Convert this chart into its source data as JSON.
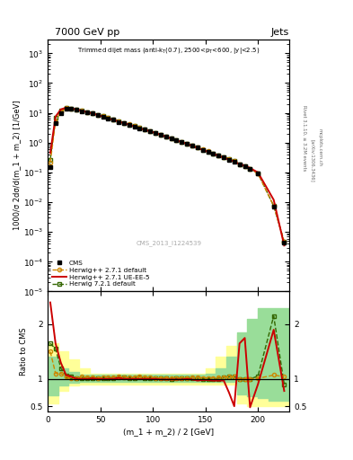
{
  "title_top": "7000 GeV pp",
  "title_right": "Jets",
  "plot_title": "Trimmed dijet mass (anti-k_{T}(0.7), 2500<p_{T}<600, |y|<2.5)",
  "watermark": "CMS_2013_I1224539",
  "xlabel": "(m_1 + m_2) / 2 [GeV]",
  "ylabel_main": "1000/σ 2dσ/d(m_1 + m_2) [1/GeV]",
  "ylabel_ratio": "Ratio to CMS",
  "xlim": [
    0,
    230
  ],
  "ylim_main": [
    1e-05,
    3000.0
  ],
  "ylim_ratio": [
    0.4,
    2.6
  ],
  "cms_x": [
    2.5,
    7.5,
    12.5,
    17.5,
    22.5,
    27.5,
    32.5,
    37.5,
    42.5,
    47.5,
    52.5,
    57.5,
    62.5,
    67.5,
    72.5,
    77.5,
    82.5,
    87.5,
    92.5,
    97.5,
    102.5,
    107.5,
    112.5,
    117.5,
    122.5,
    127.5,
    132.5,
    137.5,
    142.5,
    147.5,
    152.5,
    157.5,
    162.5,
    167.5,
    172.5,
    177.5,
    182.5,
    187.5,
    192.5,
    200,
    215,
    225
  ],
  "cms_y": [
    0.15,
    4.5,
    10.0,
    14.0,
    13.5,
    13.0,
    11.5,
    10.5,
    9.5,
    8.5,
    7.5,
    6.5,
    5.8,
    5.0,
    4.5,
    4.0,
    3.5,
    3.0,
    2.7,
    2.4,
    2.1,
    1.85,
    1.6,
    1.4,
    1.2,
    1.05,
    0.9,
    0.78,
    0.68,
    0.58,
    0.5,
    0.43,
    0.37,
    0.32,
    0.27,
    0.23,
    0.19,
    0.16,
    0.13,
    0.09,
    0.007,
    0.00045
  ],
  "hw271_x": [
    2.5,
    7.5,
    12.5,
    17.5,
    22.5,
    27.5,
    32.5,
    37.5,
    42.5,
    47.5,
    52.5,
    57.5,
    62.5,
    67.5,
    72.5,
    77.5,
    82.5,
    87.5,
    92.5,
    97.5,
    102.5,
    107.5,
    112.5,
    117.5,
    122.5,
    127.5,
    132.5,
    137.5,
    142.5,
    147.5,
    152.5,
    157.5,
    162.5,
    167.5,
    172.5,
    177.5,
    182.5,
    187.5,
    192.5,
    200,
    215,
    225
  ],
  "hw271_y": [
    0.22,
    5.0,
    11.0,
    14.5,
    13.8,
    13.2,
    11.8,
    10.8,
    9.8,
    8.7,
    7.7,
    6.7,
    6.0,
    5.2,
    4.65,
    4.1,
    3.6,
    3.12,
    2.78,
    2.48,
    2.15,
    1.88,
    1.63,
    1.42,
    1.22,
    1.07,
    0.92,
    0.8,
    0.7,
    0.59,
    0.51,
    0.44,
    0.38,
    0.33,
    0.28,
    0.24,
    0.19,
    0.16,
    0.13,
    0.091,
    0.0075,
    0.00047
  ],
  "hw271ue_x": [
    2.5,
    7.5,
    12.5,
    17.5,
    22.5,
    27.5,
    32.5,
    37.5,
    42.5,
    47.5,
    52.5,
    57.5,
    62.5,
    67.5,
    72.5,
    77.5,
    82.5,
    87.5,
    92.5,
    97.5,
    102.5,
    107.5,
    112.5,
    117.5,
    122.5,
    127.5,
    132.5,
    137.5,
    142.5,
    147.5,
    152.5,
    157.5,
    162.5,
    167.5,
    172.5,
    177.5,
    182.5,
    187.5,
    192.5,
    200,
    215,
    225
  ],
  "hw271ue_y": [
    0.45,
    7.5,
    13.0,
    15.0,
    14.0,
    13.0,
    11.8,
    10.6,
    9.6,
    8.5,
    7.5,
    6.5,
    5.8,
    5.1,
    4.5,
    4.0,
    3.5,
    3.0,
    2.7,
    2.4,
    2.1,
    1.83,
    1.58,
    1.38,
    1.19,
    1.04,
    0.9,
    0.77,
    0.66,
    0.57,
    0.49,
    0.42,
    0.36,
    0.31,
    0.27,
    0.23,
    0.19,
    0.17,
    0.14,
    0.1,
    0.012,
    0.00035
  ],
  "hw721_x": [
    2.5,
    7.5,
    12.5,
    17.5,
    22.5,
    27.5,
    32.5,
    37.5,
    42.5,
    47.5,
    52.5,
    57.5,
    62.5,
    67.5,
    72.5,
    77.5,
    82.5,
    87.5,
    92.5,
    97.5,
    102.5,
    107.5,
    112.5,
    117.5,
    122.5,
    127.5,
    132.5,
    137.5,
    142.5,
    147.5,
    152.5,
    157.5,
    162.5,
    167.5,
    172.5,
    177.5,
    182.5,
    187.5,
    192.5,
    200,
    215,
    225
  ],
  "hw721_y": [
    0.27,
    7.0,
    12.0,
    14.8,
    14.0,
    13.2,
    11.8,
    10.7,
    9.7,
    8.6,
    7.65,
    6.65,
    5.95,
    5.15,
    4.62,
    4.08,
    3.58,
    3.1,
    2.76,
    2.46,
    2.13,
    1.86,
    1.61,
    1.4,
    1.21,
    1.06,
    0.91,
    0.79,
    0.69,
    0.58,
    0.5,
    0.43,
    0.37,
    0.33,
    0.28,
    0.24,
    0.19,
    0.16,
    0.13,
    0.095,
    0.0075,
    0.00047
  ],
  "ratio_hw271_x": [
    2.5,
    7.5,
    12.5,
    17.5,
    22.5,
    27.5,
    32.5,
    37.5,
    42.5,
    47.5,
    52.5,
    57.5,
    62.5,
    67.5,
    72.5,
    77.5,
    82.5,
    87.5,
    92.5,
    97.5,
    102.5,
    107.5,
    112.5,
    117.5,
    122.5,
    127.5,
    132.5,
    137.5,
    142.5,
    147.5,
    152.5,
    157.5,
    162.5,
    167.5,
    172.5,
    177.5,
    182.5,
    187.5,
    192.5,
    200,
    215,
    225
  ],
  "ratio_hw271_y": [
    1.5,
    1.1,
    1.1,
    1.04,
    1.02,
    1.015,
    1.04,
    1.03,
    1.03,
    1.02,
    1.03,
    1.03,
    1.03,
    1.04,
    1.03,
    1.025,
    1.03,
    1.04,
    1.03,
    1.03,
    1.02,
    1.02,
    1.02,
    1.01,
    1.02,
    1.02,
    1.02,
    1.03,
    1.03,
    1.02,
    1.02,
    1.02,
    1.03,
    1.03,
    1.04,
    1.04,
    1.0,
    1.0,
    1.0,
    1.01,
    1.07,
    1.04
  ],
  "ratio_hw271ue_x": [
    2.5,
    7.5,
    12.5,
    17.5,
    22.5,
    27.5,
    32.5,
    37.5,
    42.5,
    47.5,
    52.5,
    57.5,
    62.5,
    67.5,
    72.5,
    77.5,
    82.5,
    87.5,
    92.5,
    97.5,
    102.5,
    107.5,
    112.5,
    117.5,
    122.5,
    127.5,
    132.5,
    137.5,
    142.5,
    147.5,
    152.5,
    157.5,
    162.5,
    167.5,
    172.5,
    177.5,
    182.5,
    187.5,
    192.5,
    200,
    215,
    225
  ],
  "ratio_hw271ue_y": [
    2.4,
    1.65,
    1.3,
    1.07,
    1.04,
    1.0,
    1.0,
    1.0,
    1.01,
    1.0,
    1.0,
    1.0,
    1.0,
    1.02,
    1.0,
    1.0,
    1.0,
    1.0,
    1.0,
    1.0,
    1.0,
    0.99,
    0.99,
    0.99,
    0.99,
    0.99,
    1.0,
    0.99,
    0.97,
    0.98,
    0.98,
    0.97,
    0.97,
    0.97,
    0.75,
    0.5,
    1.65,
    1.75,
    0.48,
    0.9,
    1.9,
    0.78
  ],
  "ratio_hw721_x": [
    2.5,
    7.5,
    12.5,
    17.5,
    22.5,
    27.5,
    32.5,
    37.5,
    42.5,
    47.5,
    52.5,
    57.5,
    62.5,
    67.5,
    72.5,
    77.5,
    82.5,
    87.5,
    92.5,
    97.5,
    102.5,
    107.5,
    112.5,
    117.5,
    122.5,
    127.5,
    132.5,
    137.5,
    142.5,
    147.5,
    152.5,
    157.5,
    162.5,
    167.5,
    172.5,
    177.5,
    182.5,
    187.5,
    192.5,
    200,
    215,
    225
  ],
  "ratio_hw721_y": [
    1.65,
    1.55,
    1.2,
    1.06,
    1.04,
    1.02,
    1.02,
    1.02,
    1.02,
    1.01,
    1.02,
    1.02,
    1.02,
    1.03,
    1.03,
    1.02,
    1.02,
    1.03,
    1.02,
    1.02,
    1.01,
    1.01,
    1.01,
    1.0,
    1.01,
    1.01,
    1.01,
    1.01,
    1.01,
    1.0,
    1.0,
    1.0,
    1.0,
    1.03,
    1.04,
    1.04,
    1.0,
    1.0,
    1.0,
    1.05,
    2.15,
    0.9
  ],
  "color_cms": "#000000",
  "color_hw271": "#cc8800",
  "color_hw271ue": "#cc0000",
  "color_hw721": "#336600",
  "band_yellow_x": [
    0,
    10,
    20,
    30,
    40,
    50,
    60,
    70,
    80,
    90,
    100,
    110,
    120,
    130,
    140,
    150,
    160,
    170,
    180,
    190,
    200,
    210,
    220,
    230
  ],
  "band_yellow_lo": [
    0.55,
    0.78,
    0.88,
    0.9,
    0.9,
    0.9,
    0.9,
    0.9,
    0.9,
    0.9,
    0.9,
    0.9,
    0.9,
    0.9,
    0.9,
    0.9,
    0.9,
    0.9,
    0.55,
    0.5,
    0.5,
    0.5,
    0.5,
    0.5
  ],
  "band_yellow_hi": [
    1.65,
    1.5,
    1.35,
    1.2,
    1.1,
    1.1,
    1.1,
    1.1,
    1.1,
    1.1,
    1.1,
    1.1,
    1.1,
    1.1,
    1.1,
    1.2,
    1.4,
    1.6,
    1.8,
    1.8,
    1.8,
    1.8,
    1.8,
    1.8
  ],
  "band_green_x": [
    0,
    10,
    20,
    30,
    40,
    50,
    60,
    70,
    80,
    90,
    100,
    110,
    120,
    130,
    140,
    150,
    160,
    170,
    180,
    190,
    200,
    210,
    220,
    230
  ],
  "band_green_lo": [
    0.7,
    0.88,
    0.93,
    0.95,
    0.95,
    0.95,
    0.95,
    0.95,
    0.95,
    0.95,
    0.95,
    0.95,
    0.95,
    0.95,
    0.95,
    0.95,
    0.95,
    0.95,
    0.72,
    0.68,
    0.65,
    0.6,
    0.6,
    0.6
  ],
  "band_green_hi": [
    1.4,
    1.2,
    1.12,
    1.07,
    1.07,
    1.07,
    1.07,
    1.07,
    1.07,
    1.07,
    1.07,
    1.07,
    1.07,
    1.07,
    1.07,
    1.1,
    1.2,
    1.4,
    1.85,
    2.1,
    2.3,
    2.3,
    2.3,
    2.3
  ]
}
